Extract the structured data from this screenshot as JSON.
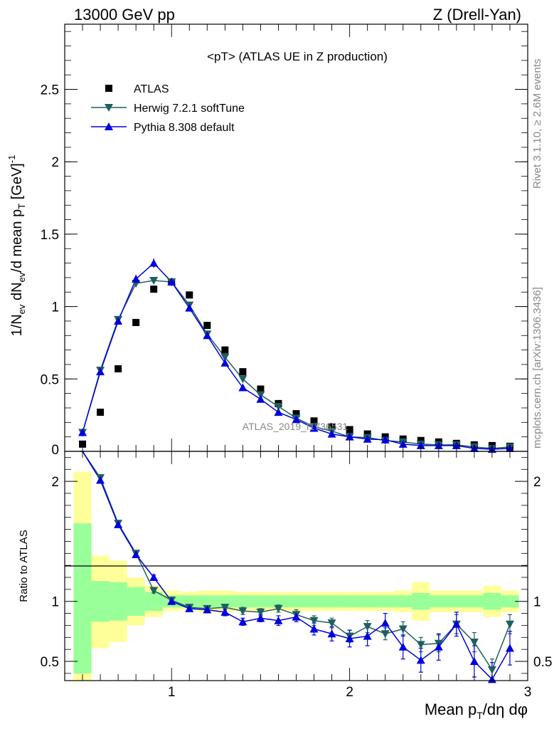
{
  "header": {
    "left": "13000 GeV pp",
    "right": "Z (Drell-Yan)"
  },
  "side_labels": {
    "rivet": "Rivet 3.1.10, ≥ 2.6M events",
    "mcplots": "mcplots.cern.ch [arXiv:1306.3436]"
  },
  "chart_data": {
    "type": "scatter",
    "title": "<pT> (ATLAS UE in Z production)",
    "watermark": "ATLAS_2019_I1736531",
    "xlabel": "Mean p_T/dη dφ",
    "ylabel": "1/N_ev dN_ev/d mean p_T [GeV]^-1",
    "ratio_ylabel": "Ratio to ATLAS",
    "xlim": [
      0.4,
      3.0
    ],
    "ylim": [
      0,
      2.95
    ],
    "ratio_ylim": [
      0.34,
      2.25
    ],
    "main_yticks": [
      "0.5",
      "1",
      "1.5",
      "2",
      "2.5"
    ],
    "ratio_yticks": [
      "0.5",
      "1",
      "2"
    ],
    "xticks": [
      "1",
      "2",
      "3"
    ],
    "legend_position": "top-left",
    "x": [
      0.5,
      0.6,
      0.7,
      0.8,
      0.9,
      1.0,
      1.1,
      1.2,
      1.3,
      1.4,
      1.5,
      1.6,
      1.7,
      1.8,
      1.9,
      2.0,
      2.1,
      2.2,
      2.3,
      2.4,
      2.5,
      2.6,
      2.7,
      2.8,
      2.9
    ],
    "series": [
      {
        "name": "ATLAS",
        "color": "#000000",
        "marker": "square",
        "values": [
          0.05,
          0.27,
          0.57,
          0.89,
          1.12,
          1.17,
          1.08,
          0.87,
          0.7,
          0.55,
          0.43,
          0.33,
          0.26,
          0.21,
          0.17,
          0.15,
          0.12,
          0.1,
          0.085,
          0.075,
          0.065,
          0.055,
          0.045,
          0.04,
          0.035
        ]
      },
      {
        "name": "Herwig 7.2.1 softTune",
        "color": "#1f5f5f",
        "marker": "triangle-down",
        "values": [
          0.13,
          0.56,
          0.91,
          1.16,
          1.18,
          1.17,
          1.01,
          0.81,
          0.65,
          0.5,
          0.39,
          0.31,
          0.23,
          0.17,
          0.14,
          0.1,
          0.095,
          0.075,
          0.065,
          0.05,
          0.045,
          0.045,
          0.03,
          0.02,
          0.03
        ]
      },
      {
        "name": "Pythia 8.308 default",
        "color": "#0000dd",
        "marker": "triangle-up",
        "values": [
          0.13,
          0.55,
          0.9,
          1.19,
          1.3,
          1.17,
          0.99,
          0.8,
          0.61,
          0.44,
          0.36,
          0.27,
          0.22,
          0.16,
          0.12,
          0.1,
          0.085,
          0.08,
          0.05,
          0.04,
          0.04,
          0.04,
          0.02,
          0.015,
          0.02
        ]
      }
    ],
    "ratio_series": [
      {
        "name": "Herwig 7.2.1 softTune",
        "values": [
          2.6,
          2.03,
          1.65,
          1.4,
          1.09,
          1.01,
          0.95,
          0.94,
          0.95,
          0.92,
          0.91,
          0.94,
          0.89,
          0.84,
          0.82,
          0.71,
          0.79,
          0.73,
          0.77,
          0.64,
          0.65,
          0.81,
          0.66,
          0.43,
          0.81
        ]
      },
      {
        "name": "Pythia 8.308 default",
        "values": [
          2.6,
          2.01,
          1.64,
          1.39,
          1.2,
          1.0,
          0.94,
          0.93,
          0.91,
          0.83,
          0.86,
          0.84,
          0.87,
          0.77,
          0.73,
          0.69,
          0.71,
          0.82,
          0.62,
          0.51,
          0.62,
          0.81,
          0.5,
          0.35,
          0.61
        ]
      }
    ],
    "ratio_band_1sigma": [
      [
        0.4,
        1.65
      ],
      [
        0.83,
        1.17
      ],
      [
        0.84,
        1.16
      ],
      [
        0.88,
        1.12
      ],
      [
        0.92,
        1.08
      ],
      [
        0.95,
        1.05
      ],
      [
        0.95,
        1.05
      ],
      [
        0.95,
        1.05
      ],
      [
        0.95,
        1.05
      ],
      [
        0.95,
        1.05
      ],
      [
        0.95,
        1.05
      ],
      [
        0.95,
        1.05
      ],
      [
        0.95,
        1.05
      ],
      [
        0.95,
        1.05
      ],
      [
        0.95,
        1.05
      ],
      [
        0.95,
        1.05
      ],
      [
        0.95,
        1.05
      ],
      [
        0.95,
        1.05
      ],
      [
        0.95,
        1.05
      ],
      [
        0.93,
        1.07
      ],
      [
        0.95,
        1.05
      ],
      [
        0.95,
        1.05
      ],
      [
        0.95,
        1.05
      ],
      [
        0.93,
        1.07
      ],
      [
        0.95,
        1.05
      ]
    ],
    "ratio_band_total": [
      [
        0.33,
        2.08
      ],
      [
        0.61,
        1.38
      ],
      [
        0.66,
        1.34
      ],
      [
        0.8,
        1.2
      ],
      [
        0.87,
        1.13
      ],
      [
        0.92,
        1.09
      ],
      [
        0.93,
        1.08
      ],
      [
        0.91,
        1.09
      ],
      [
        0.91,
        1.09
      ],
      [
        0.92,
        1.08
      ],
      [
        0.92,
        1.08
      ],
      [
        0.92,
        1.08
      ],
      [
        0.92,
        1.08
      ],
      [
        0.92,
        1.08
      ],
      [
        0.92,
        1.08
      ],
      [
        0.92,
        1.08
      ],
      [
        0.92,
        1.08
      ],
      [
        0.92,
        1.08
      ],
      [
        0.91,
        1.09
      ],
      [
        0.84,
        1.16
      ],
      [
        0.91,
        1.09
      ],
      [
        0.91,
        1.09
      ],
      [
        0.91,
        1.09
      ],
      [
        0.87,
        1.13
      ],
      [
        0.91,
        1.09
      ]
    ],
    "ratio_errors": {
      "herwig": [
        0.02,
        0.02,
        0.02,
        0.02,
        0.02,
        0.02,
        0.02,
        0.02,
        0.02,
        0.03,
        0.03,
        0.03,
        0.04,
        0.04,
        0.04,
        0.05,
        0.05,
        0.05,
        0.06,
        0.06,
        0.07,
        0.08,
        0.08,
        0.09,
        0.08
      ],
      "pythia": [
        0.02,
        0.02,
        0.02,
        0.02,
        0.02,
        0.02,
        0.02,
        0.02,
        0.03,
        0.03,
        0.03,
        0.04,
        0.04,
        0.05,
        0.06,
        0.07,
        0.08,
        0.08,
        0.1,
        0.1,
        0.11,
        0.1,
        0.13,
        0.14,
        0.14
      ]
    }
  }
}
